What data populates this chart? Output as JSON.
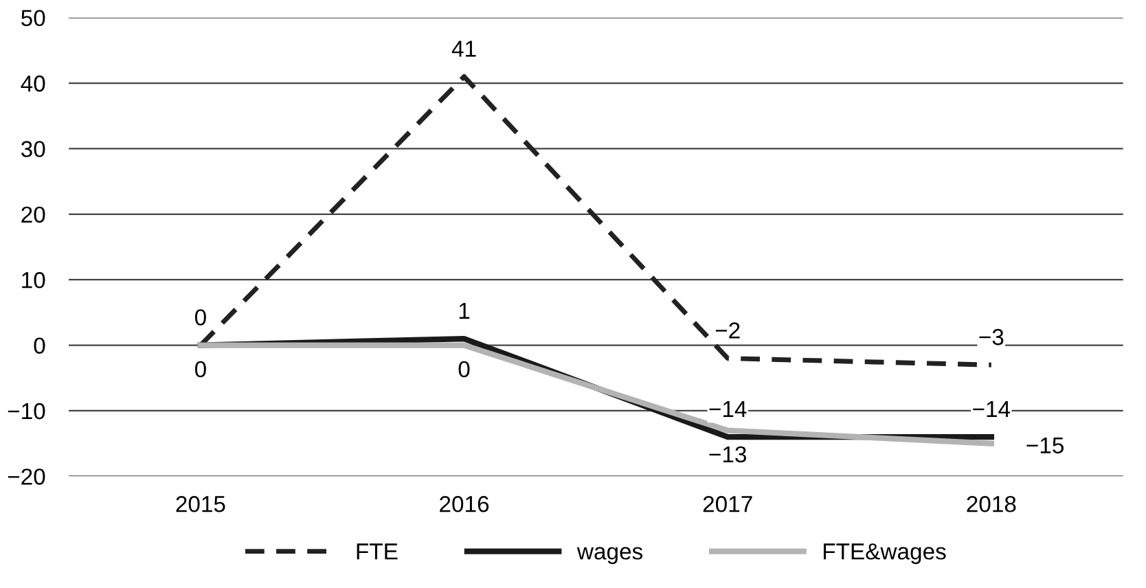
{
  "chart_data": {
    "type": "line",
    "categories": [
      "2015",
      "2016",
      "2017",
      "2018"
    ],
    "series": [
      {
        "name": "FTE",
        "color": "#222222",
        "line_style": "dashed",
        "values": [
          0,
          41,
          -2,
          -3
        ],
        "value_labels": [
          "0",
          "41",
          "−2",
          "−3"
        ]
      },
      {
        "name": "wages",
        "color": "#1a1a1a",
        "line_style": "solid",
        "values": [
          0,
          1,
          -14,
          -14
        ],
        "value_labels": [
          null,
          "1",
          "−14",
          "−14"
        ]
      },
      {
        "name": "FTE&wages",
        "color": "#b3b3b3",
        "line_style": "solid",
        "values": [
          0,
          0,
          -13,
          -15
        ],
        "value_labels": [
          "0",
          "0",
          "−13",
          "−15"
        ]
      }
    ],
    "ylim": [
      -20,
      50
    ],
    "yticks": [
      {
        "value": -20,
        "label": "−20"
      },
      {
        "value": -10,
        "label": "−10"
      },
      0,
      10,
      20,
      30,
      40,
      50
    ],
    "grid": "y",
    "legend": "bottom",
    "marker": "none"
  }
}
